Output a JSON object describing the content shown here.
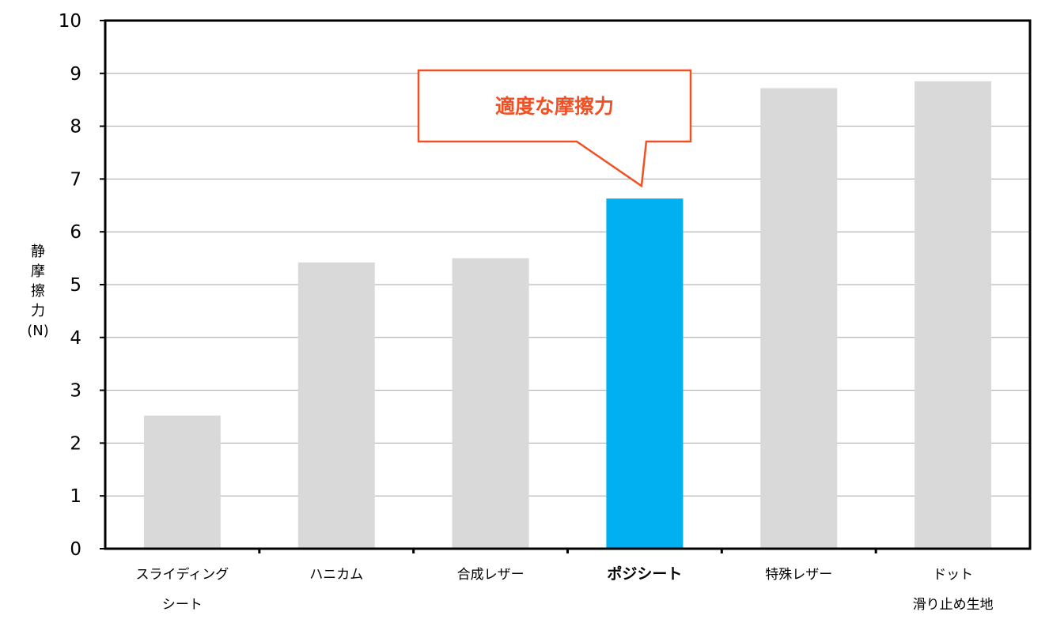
{
  "chart_data": {
    "type": "bar",
    "categories": [
      [
        "スライディング",
        "シート"
      ],
      [
        "ハニカム"
      ],
      [
        "合成レザー"
      ],
      [
        "ポジシート"
      ],
      [
        "特殊レザー"
      ],
      [
        "ドット",
        "滑り止め生地"
      ]
    ],
    "values": [
      2.52,
      5.42,
      5.5,
      6.63,
      8.72,
      8.85
    ],
    "highlight_index": 3,
    "ylabel": [
      "静",
      "摩",
      "擦",
      "力",
      "(N)"
    ],
    "ylim": [
      0,
      10
    ],
    "yticks": [
      "0",
      "1",
      "2",
      "3",
      "4",
      "5",
      "6",
      "7",
      "8",
      "9",
      "10"
    ],
    "grid": true,
    "annotation": {
      "text": "適度な摩擦力",
      "target_index": 3
    },
    "colors": {
      "bar": "#d9d9d9",
      "highlight_bar": "#00b0f0",
      "highlight_text": "#f05023",
      "callout_border": "#f05023",
      "grid": "#a6a6a6",
      "axis": "#000000"
    }
  }
}
